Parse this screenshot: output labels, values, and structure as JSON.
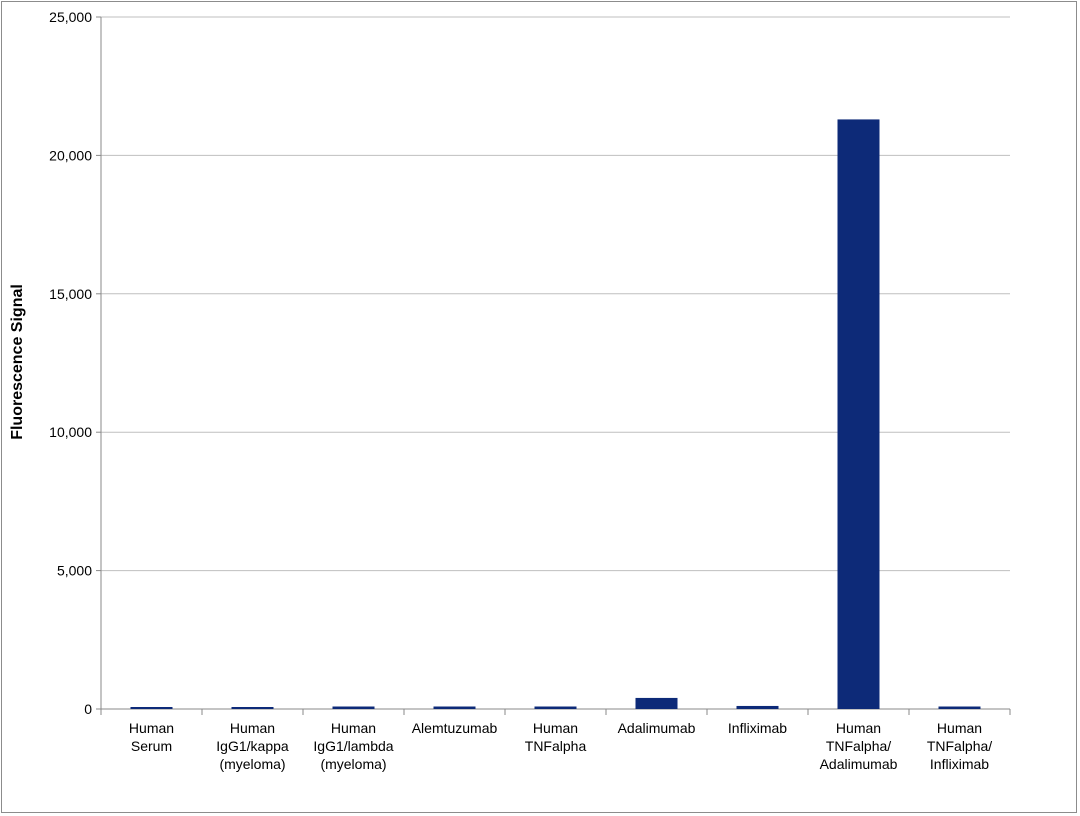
{
  "chart_data": {
    "type": "bar",
    "title": "",
    "xlabel": "",
    "ylabel": "Fluorescence Signal",
    "ylim": [
      0,
      25000
    ],
    "yticks": [
      0,
      5000,
      10000,
      15000,
      20000,
      25000
    ],
    "ytick_labels": [
      "0",
      "5,000",
      "10,000",
      "15,000",
      "20,000",
      "25,000"
    ],
    "grid": true,
    "legend": "none",
    "bar_color": "#0d2a78",
    "categories": [
      [
        "Human",
        "Serum"
      ],
      [
        "Human",
        "IgG1/kappa",
        "(myeloma)"
      ],
      [
        "Human",
        "IgG1/lambda",
        "(myeloma)"
      ],
      [
        "Alemtuzumab"
      ],
      [
        "Human",
        "TNFalpha"
      ],
      [
        "Adalimumab"
      ],
      [
        "Infliximab"
      ],
      [
        "Human",
        "TNFalpha/",
        "Adalimumab"
      ],
      [
        "Human",
        "TNFalpha/",
        "Infliximab"
      ]
    ],
    "values": [
      60,
      50,
      90,
      90,
      90,
      400,
      110,
      21300,
      90
    ]
  }
}
